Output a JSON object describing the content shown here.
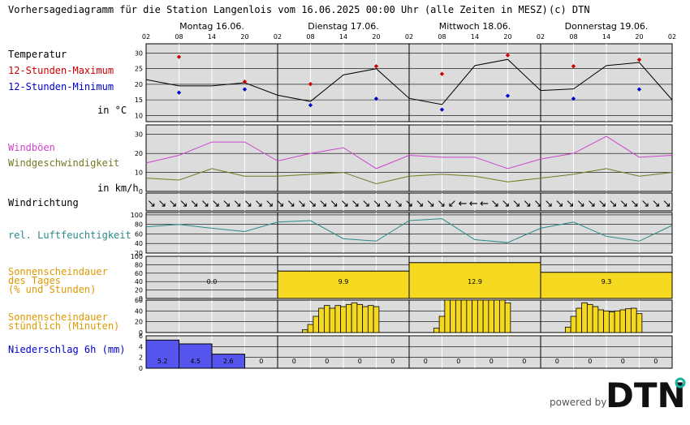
{
  "title": "Vorhersagediagramm für die Station Langenlois vom 16.06.2025 00:00 Uhr (alle Zeiten in MESZ)",
  "copyright": "(c) DTN",
  "footer": {
    "powered_by": "powered by"
  },
  "colors": {
    "max": "#cc0000",
    "min": "#0000cc",
    "gust": "#cc44cc",
    "wind": "#777722",
    "humidity": "#2a8a8a",
    "sun_label": "#dd9900",
    "sun_fill": "#f5d820",
    "precip_label": "#0000cc",
    "precip_fill": "#5555ee",
    "panel_bg": "#dcdcdc"
  },
  "chart_data": {
    "type": "line",
    "days": [
      "Montag 16.06.",
      "Dienstag 17.06.",
      "Mittwoch 18.06.",
      "Donnerstag 19.06."
    ],
    "hour_ticks": [
      "02",
      "08",
      "14",
      "20",
      "02",
      "08",
      "14",
      "20",
      "02",
      "08",
      "14",
      "20",
      "02",
      "08",
      "14",
      "20",
      "02"
    ],
    "labels": {
      "temp": "Temperatur",
      "max": "12-Stunden-Maximum",
      "min": "12-Stunden-Minimum",
      "temp_unit": "in °C",
      "gust": "Windböen",
      "wind": "Windgeschwindigkeit",
      "wind_unit": "in km/h",
      "winddir": "Windrichtung",
      "humidity": "rel. Luftfeuchtigkeit",
      "sun_daily_1": "Sonnenscheindauer",
      "sun_daily_2": "des Tages",
      "sun_daily_3": "(% und Stunden)",
      "sun_hourly_1": "Sonnenscheindauer",
      "sun_hourly_2": "stündlich (Minuten)",
      "precip": "Niederschlag 6h (mm)"
    },
    "temperature": {
      "ylim": [
        8,
        33
      ],
      "ticks": [
        10,
        15,
        20,
        25,
        30
      ],
      "hours": [
        0,
        6,
        12,
        18,
        24,
        30,
        36,
        42,
        48,
        54,
        60,
        66,
        72,
        78,
        84,
        90,
        96
      ],
      "values": [
        21.5,
        19.5,
        19.5,
        20.5,
        16.5,
        14.5,
        23,
        25,
        15.5,
        13.5,
        26,
        28,
        18,
        18.5,
        26,
        27,
        15
      ],
      "max": [
        {
          "h": 6,
          "v": 29
        },
        {
          "h": 18,
          "v": 21
        },
        {
          "h": 30,
          "v": 20.3
        },
        {
          "h": 42,
          "v": 26
        },
        {
          "h": 54,
          "v": 23.5
        },
        {
          "h": 66,
          "v": 29.5
        },
        {
          "h": 78,
          "v": 26
        },
        {
          "h": 90,
          "v": 28
        }
      ],
      "min": [
        {
          "h": 6,
          "v": 17.5
        },
        {
          "h": 18,
          "v": 18.5
        },
        {
          "h": 30,
          "v": 13.5
        },
        {
          "h": 42,
          "v": 15.5
        },
        {
          "h": 54,
          "v": 12
        },
        {
          "h": 66,
          "v": 16.5
        },
        {
          "h": 78,
          "v": 15.5
        },
        {
          "h": 90,
          "v": 18.5
        }
      ]
    },
    "wind": {
      "ylim": [
        0,
        35
      ],
      "ticks": [
        0,
        10,
        20,
        30
      ],
      "hours": [
        0,
        6,
        12,
        18,
        24,
        30,
        36,
        42,
        48,
        54,
        60,
        66,
        72,
        78,
        84,
        90,
        96
      ],
      "gusts": [
        15,
        19,
        26,
        26,
        16,
        20,
        23,
        12,
        19,
        18,
        18,
        12,
        17,
        20,
        29,
        18,
        19
      ],
      "speed": [
        7,
        6,
        12,
        8,
        8,
        9,
        10,
        4,
        8,
        9,
        8,
        5,
        7,
        9,
        12,
        8,
        10
      ]
    },
    "wind_direction_arrows": [
      "↘",
      "↘",
      "↘",
      "↘",
      "↘",
      "↘",
      "↘",
      "↘",
      "↘",
      "↘",
      "↘",
      "↘",
      "↘",
      "↘",
      "↘",
      "↘",
      "↘",
      "↘",
      "↘",
      "↘",
      "↘",
      "↘",
      "↘",
      "↘",
      "↘",
      "↘",
      "↘",
      "↘",
      "↙",
      "←",
      "←",
      "←",
      "↘",
      "↘",
      "↘",
      "↘",
      "↘",
      "↘",
      "↘",
      "↘",
      "↘",
      "↘",
      "↘",
      "↘",
      "↘",
      "↘",
      "↘",
      "↘",
      "↘"
    ],
    "humidity": {
      "ylim": [
        20,
        105
      ],
      "ticks": [
        20,
        40,
        60,
        80,
        100
      ],
      "hours": [
        0,
        6,
        12,
        18,
        24,
        30,
        36,
        42,
        48,
        54,
        60,
        66,
        72,
        78,
        84,
        90,
        96
      ],
      "values": [
        75,
        80,
        72,
        65,
        85,
        88,
        50,
        45,
        88,
        92,
        48,
        42,
        72,
        85,
        55,
        45,
        78
      ]
    },
    "sunshine_daily": {
      "ylim": [
        0,
        100
      ],
      "ticks": [
        0,
        20,
        40,
        60,
        80,
        100
      ],
      "percent": [
        0,
        65,
        85,
        62
      ],
      "hours_labels": [
        "0.0",
        "9.9",
        "12.9",
        "9.3"
      ]
    },
    "sunshine_hourly": {
      "ylim": [
        0,
        60
      ],
      "ticks": [
        0,
        20,
        40,
        60
      ],
      "day1": [],
      "day2": [
        {
          "h": 29,
          "m": 5
        },
        {
          "h": 30,
          "m": 15
        },
        {
          "h": 31,
          "m": 30
        },
        {
          "h": 32,
          "m": 45
        },
        {
          "h": 33,
          "m": 50
        },
        {
          "h": 34,
          "m": 45
        },
        {
          "h": 35,
          "m": 50
        },
        {
          "h": 36,
          "m": 48
        },
        {
          "h": 37,
          "m": 52
        },
        {
          "h": 38,
          "m": 55
        },
        {
          "h": 39,
          "m": 52
        },
        {
          "h": 40,
          "m": 48
        },
        {
          "h": 41,
          "m": 50
        },
        {
          "h": 42,
          "m": 48
        }
      ],
      "day3": [
        {
          "h": 53,
          "m": 8
        },
        {
          "h": 54,
          "m": 30
        },
        {
          "h": 55,
          "m": 60
        },
        {
          "h": 56,
          "m": 60
        },
        {
          "h": 57,
          "m": 60
        },
        {
          "h": 58,
          "m": 60
        },
        {
          "h": 59,
          "m": 60
        },
        {
          "h": 60,
          "m": 60
        },
        {
          "h": 61,
          "m": 60
        },
        {
          "h": 62,
          "m": 60
        },
        {
          "h": 63,
          "m": 60
        },
        {
          "h": 64,
          "m": 60
        },
        {
          "h": 65,
          "m": 60
        },
        {
          "h": 66,
          "m": 55
        }
      ],
      "day4": [
        {
          "h": 77,
          "m": 10
        },
        {
          "h": 78,
          "m": 30
        },
        {
          "h": 79,
          "m": 45
        },
        {
          "h": 80,
          "m": 55
        },
        {
          "h": 81,
          "m": 52
        },
        {
          "h": 82,
          "m": 48
        },
        {
          "h": 83,
          "m": 42
        },
        {
          "h": 84,
          "m": 40
        },
        {
          "h": 85,
          "m": 38
        },
        {
          "h": 86,
          "m": 40
        },
        {
          "h": 87,
          "m": 42
        },
        {
          "h": 88,
          "m": 44
        },
        {
          "h": 89,
          "m": 45
        },
        {
          "h": 90,
          "m": 35
        }
      ]
    },
    "precipitation": {
      "ylim": [
        0,
        6
      ],
      "ticks": [
        0,
        2,
        4,
        6
      ],
      "values": [
        5.2,
        4.5,
        2.6,
        0,
        0,
        0,
        0,
        0,
        0,
        0,
        0,
        0,
        0,
        0,
        0,
        0
      ],
      "labels": [
        "5.2",
        "4.5",
        "2.6",
        "0",
        "0",
        "0",
        "0",
        "0",
        "0",
        "0",
        "0",
        "0",
        "0",
        "0",
        "0",
        "0"
      ]
    }
  }
}
